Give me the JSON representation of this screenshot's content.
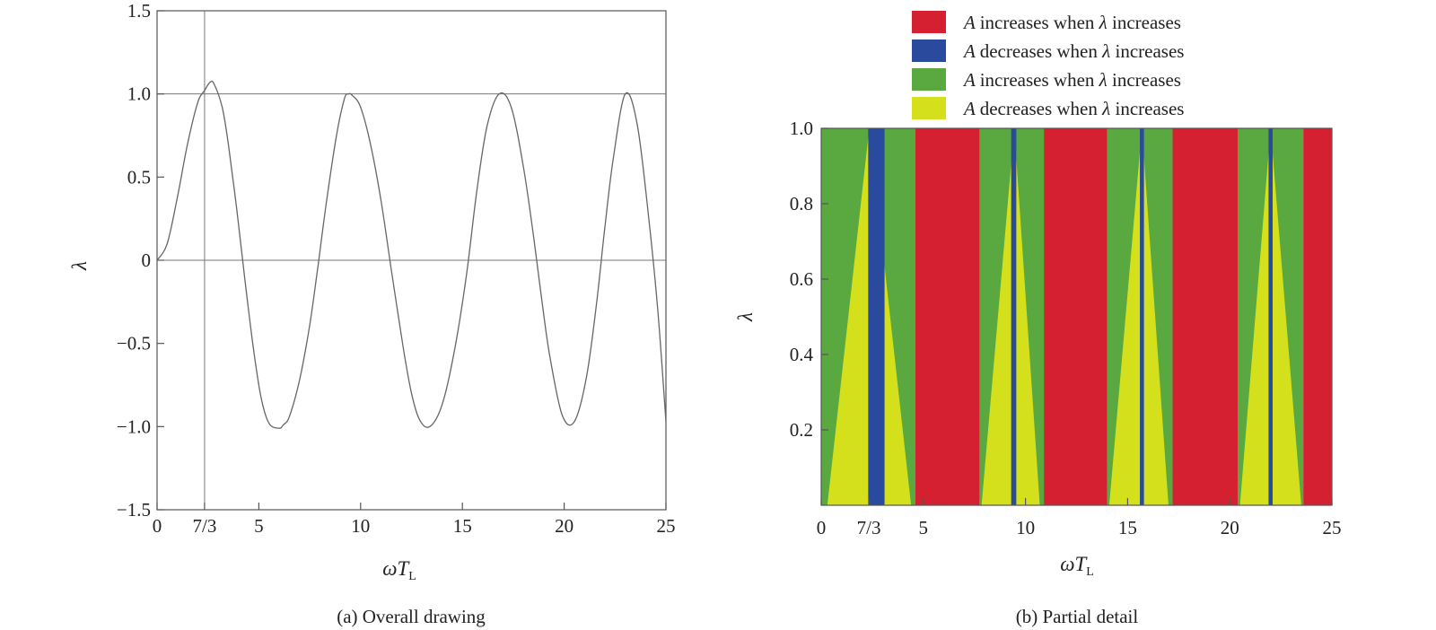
{
  "chart_data": [
    {
      "type": "line",
      "caption": "(a) Overall drawing",
      "xlabel": "ωT",
      "xlabel_sub": "L",
      "ylabel": "λ",
      "xlim": [
        0,
        25
      ],
      "ylim": [
        -1.5,
        1.5
      ],
      "xticks": [
        {
          "value": 0,
          "label": "0"
        },
        {
          "value": 2.3333,
          "label": "7/3"
        },
        {
          "value": 5,
          "label": "5"
        },
        {
          "value": 10,
          "label": "10"
        },
        {
          "value": 15,
          "label": "15"
        },
        {
          "value": 20,
          "label": "20"
        },
        {
          "value": 25,
          "label": "25"
        }
      ],
      "yticks": [
        {
          "value": 1.5,
          "label": "1.5"
        },
        {
          "value": 1.0,
          "label": "1.0"
        },
        {
          "value": 0.5,
          "label": "0.5"
        },
        {
          "value": 0,
          "label": "0"
        },
        {
          "value": -0.5,
          "label": "−0.5"
        },
        {
          "value": -1.0,
          "label": "−1.0"
        },
        {
          "value": -1.5,
          "label": "−1.5"
        }
      ],
      "reference_lines": {
        "horizontal": [
          1.0,
          0.0
        ],
        "vertical": [
          2.3333
        ]
      },
      "series": [
        {
          "x": [
            0,
            0.5,
            1.0,
            1.5,
            2.0,
            2.33,
            2.6,
            2.8,
            3.2,
            3.5,
            3.9,
            4.3,
            4.7,
            5.1,
            5.5,
            6.0,
            6.2,
            6.5,
            7.0,
            7.5,
            7.9,
            8.3,
            8.8,
            9.2,
            9.4,
            9.6,
            10.0,
            10.5,
            11.0,
            11.5,
            12.1,
            12.5,
            12.9,
            13.4,
            14.0,
            14.6,
            15.2,
            15.7,
            16.2,
            16.8,
            17.4,
            18.0,
            18.5,
            18.9,
            19.3,
            19.9,
            20.5,
            21.1,
            21.6,
            22.0,
            22.4,
            23.0,
            23.6,
            24.2,
            24.6,
            25.0
          ],
          "y": [
            0,
            0.1,
            0.38,
            0.7,
            0.95,
            1.02,
            1.07,
            1.06,
            0.92,
            0.7,
            0.32,
            -0.1,
            -0.5,
            -0.82,
            -0.98,
            -1.01,
            -0.99,
            -0.94,
            -0.72,
            -0.39,
            -0.04,
            0.33,
            0.74,
            0.97,
            1.0,
            0.99,
            0.92,
            0.69,
            0.36,
            -0.05,
            -0.53,
            -0.8,
            -0.96,
            -1.0,
            -0.87,
            -0.55,
            -0.09,
            0.41,
            0.8,
            1.0,
            0.92,
            0.56,
            0.14,
            -0.24,
            -0.58,
            -0.93,
            -0.97,
            -0.7,
            -0.25,
            0.2,
            0.6,
            1.0,
            0.81,
            0.2,
            -0.3,
            -0.97
          ]
        }
      ]
    },
    {
      "type": "heatmap",
      "caption": "(b) Partial detail",
      "xlabel": "ωT",
      "xlabel_sub": "L",
      "ylabel": "λ",
      "xlim": [
        0,
        25
      ],
      "ylim": [
        0,
        1.0
      ],
      "xticks": [
        {
          "value": 0,
          "label": "0"
        },
        {
          "value": 2.3333,
          "label": "7/3"
        },
        {
          "value": 5,
          "label": "5"
        },
        {
          "value": 10,
          "label": "10"
        },
        {
          "value": 15,
          "label": "15"
        },
        {
          "value": 20,
          "label": "20"
        },
        {
          "value": 25,
          "label": "25"
        }
      ],
      "yticks": [
        {
          "value": 1.0,
          "label": "1.0"
        },
        {
          "value": 0.8,
          "label": "0.8"
        },
        {
          "value": 0.6,
          "label": "0.6"
        },
        {
          "value": 0.4,
          "label": "0.4"
        },
        {
          "value": 0.2,
          "label": "0.2"
        }
      ],
      "colors": {
        "red": "#d42030",
        "blue": "#2a4a9e",
        "green": "#5aa840",
        "yellow": "#d4e01c"
      },
      "legend": [
        {
          "color": "#d42030",
          "var": "A",
          "text": "increases when",
          "lam": "λ",
          "tail": "increases"
        },
        {
          "color": "#2a4a9e",
          "var": "A",
          "text": "decreases when",
          "lam": "λ",
          "tail": "increases"
        },
        {
          "color": "#5aa840",
          "var": "A",
          "text": "increases when",
          "lam": "λ",
          "tail": "increases"
        },
        {
          "color": "#d4e01c",
          "var": "A",
          "text": "decreases when",
          "lam": "λ",
          "tail": "increases"
        }
      ],
      "red_bands": [
        [
          4.6,
          7.75
        ],
        [
          10.9,
          14.0
        ],
        [
          17.2,
          20.4
        ],
        [
          23.6,
          25.0
        ]
      ],
      "blue_bands": [
        [
          2.3,
          3.1
        ],
        [
          9.3,
          9.55
        ],
        [
          15.6,
          15.8
        ],
        [
          21.9,
          22.1
        ]
      ],
      "green_bands": [
        [
          0,
          4.6
        ],
        [
          7.75,
          10.9
        ],
        [
          14.0,
          17.2
        ],
        [
          20.4,
          23.6
        ]
      ],
      "yellow_triangles": [
        {
          "base": [
            0.3,
            4.4
          ],
          "apex": 2.35
        },
        {
          "base": [
            7.85,
            10.7
          ],
          "apex": 9.45
        },
        {
          "base": [
            14.1,
            17.0
          ],
          "apex": 15.7
        },
        {
          "base": [
            20.5,
            23.5
          ],
          "apex": 22.0
        }
      ]
    }
  ]
}
